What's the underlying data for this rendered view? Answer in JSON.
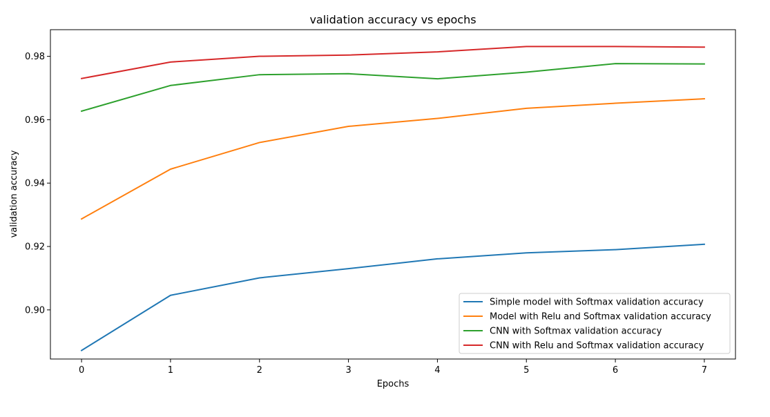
{
  "chart_data": {
    "type": "line",
    "title": "validation accuracy vs epochs",
    "xlabel": "Epochs",
    "ylabel": "validation accuracy",
    "x": [
      0,
      1,
      2,
      3,
      4,
      5,
      6,
      7
    ],
    "xticks": [
      "0",
      "1",
      "2",
      "3",
      "4",
      "5",
      "6",
      "7"
    ],
    "yticks": [
      "0.90",
      "0.92",
      "0.94",
      "0.96",
      "0.98"
    ],
    "ytick_values": [
      0.9,
      0.92,
      0.94,
      0.96,
      0.98
    ],
    "xlim": [
      -0.35,
      7.35
    ],
    "ylim": [
      0.8845,
      0.9884
    ],
    "grid": false,
    "legend_position": "lower-right",
    "series": [
      {
        "name": "Simple model with Softmax validation accuracy",
        "color": "#1f77b4",
        "values": [
          0.8872,
          0.9046,
          0.9101,
          0.913,
          0.9161,
          0.918,
          0.919,
          0.9207
        ]
      },
      {
        "name": "Model with Relu and Softmax validation accuracy",
        "color": "#ff7f0e",
        "values": [
          0.9287,
          0.9444,
          0.9528,
          0.9579,
          0.9604,
          0.9636,
          0.9652,
          0.9666
        ]
      },
      {
        "name": "CNN with Softmax validation accuracy",
        "color": "#2ca02c",
        "values": [
          0.9627,
          0.9708,
          0.9742,
          0.9745,
          0.9729,
          0.975,
          0.9777,
          0.9776
        ]
      },
      {
        "name": "CNN with Relu and Softmax validation accuracy",
        "color": "#d62728",
        "values": [
          0.973,
          0.9782,
          0.98,
          0.9804,
          0.9814,
          0.9831,
          0.9831,
          0.9829
        ]
      }
    ]
  }
}
